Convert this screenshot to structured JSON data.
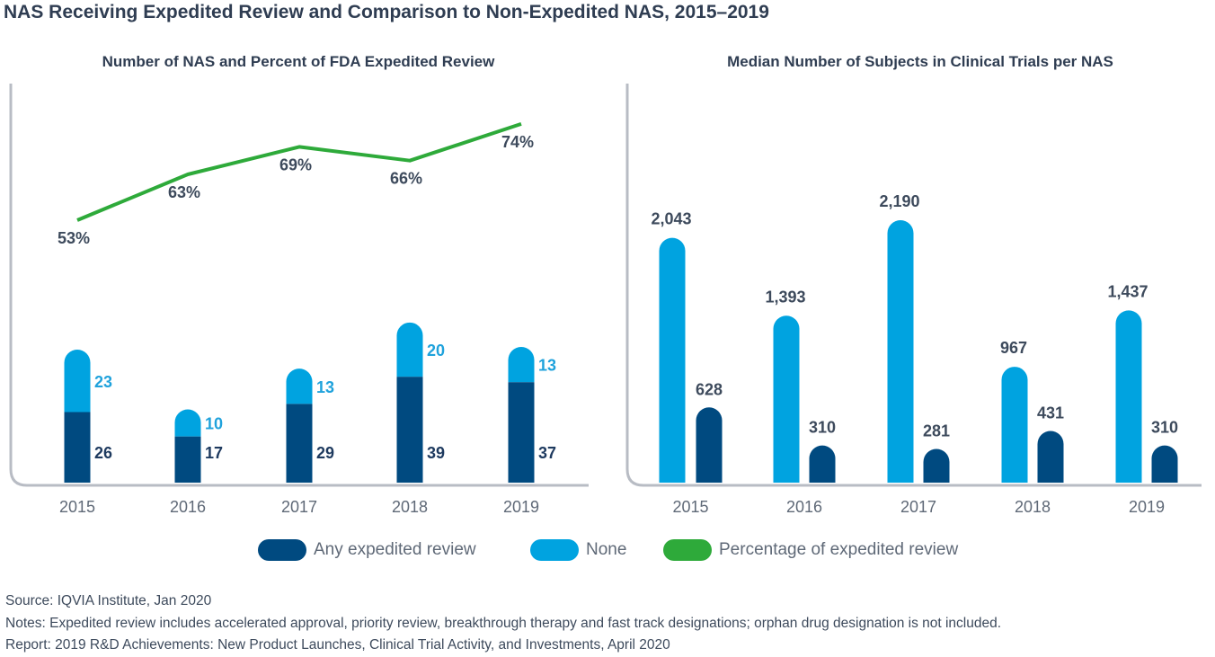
{
  "title": "NAS Receiving Expedited Review and Comparison to Non-Expedited NAS, 2015–2019",
  "colors": {
    "dark": "#004a80",
    "light": "#00a3e0",
    "green": "#2eaa3a"
  },
  "chart_data": [
    {
      "type": "bar",
      "stacked": true,
      "title": "Number of NAS and Percent of FDA Expedited Review",
      "categories": [
        "2015",
        "2016",
        "2017",
        "2018",
        "2019"
      ],
      "series": [
        {
          "name": "Any expedited review",
          "values": [
            26,
            17,
            29,
            39,
            37
          ],
          "labels": [
            "26",
            "17",
            "29",
            "39",
            "37"
          ]
        },
        {
          "name": "None",
          "values": [
            23,
            10,
            13,
            20,
            13
          ],
          "labels": [
            "23",
            "10",
            "13",
            "20",
            "13"
          ]
        }
      ],
      "line": {
        "name": "Percentage of expedited review",
        "values": [
          53,
          63,
          69,
          66,
          74
        ],
        "labels": [
          "53%",
          "63%",
          "69%",
          "66%",
          "74%"
        ]
      }
    },
    {
      "type": "bar",
      "title": "Median Number of Subjects in Clinical Trials per NAS",
      "categories": [
        "2015",
        "2016",
        "2017",
        "2018",
        "2019"
      ],
      "series": [
        {
          "name": "None",
          "values": [
            2043,
            1393,
            2190,
            967,
            1437
          ],
          "labels": [
            "2,043",
            "1,393",
            "2,190",
            "967",
            "1,437"
          ]
        },
        {
          "name": "Any expedited review",
          "values": [
            628,
            310,
            281,
            431,
            310
          ],
          "labels": [
            "628",
            "310",
            "281",
            "431",
            "310"
          ]
        }
      ]
    }
  ],
  "legend": {
    "items": [
      {
        "label": "Any expedited review",
        "color": "#004a80"
      },
      {
        "label": "None",
        "color": "#00a3e0"
      },
      {
        "label": "Percentage of expedited review",
        "color": "#2eaa3a"
      }
    ]
  },
  "footer": {
    "source": "Source: IQVIA Institute, Jan 2020",
    "notes": "Notes: Expedited review includes accelerated approval, priority review, breakthrough therapy and fast track designations; orphan drug designation is not included.",
    "report": "Report: 2019 R&D Achievements: New Product Launches, Clinical Trial Activity, and Investments, April 2020"
  }
}
